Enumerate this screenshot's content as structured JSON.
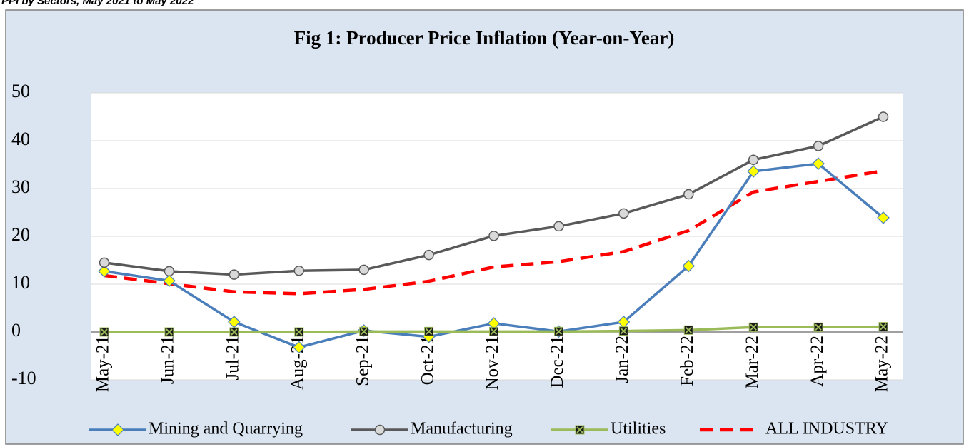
{
  "chart_data": {
    "type": "line",
    "caption": "PPI by Sectors, May 2021 to May 2022",
    "title": "Fig 1: Producer Price Inflation (Year-on-Year)",
    "categories": [
      "May-21",
      "Jun-21",
      "Jul-21",
      "Aug-21",
      "Sep-21",
      "Oct-21",
      "Nov-21",
      "Dec-21",
      "Jan-22",
      "Feb-22",
      "Mar-22",
      "Apr-22",
      "May-22"
    ],
    "series": [
      {
        "name": "Mining and Quarrying",
        "color": "#4a7ebb",
        "marker": "diamond",
        "marker_color": "#ffff00",
        "values": [
          12.7,
          10.7,
          2.1,
          -3.2,
          0.3,
          -1.0,
          1.8,
          0.1,
          2.1,
          13.8,
          33.6,
          35.2,
          23.9
        ]
      },
      {
        "name": "Manufacturing",
        "color": "#595959",
        "marker": "circle",
        "marker_color": "#d9d9d9",
        "values": [
          14.5,
          12.7,
          12.0,
          12.8,
          13.0,
          16.1,
          20.1,
          22.1,
          24.8,
          28.8,
          36.0,
          38.9,
          45.0
        ]
      },
      {
        "name": "Utilities",
        "color": "#9bbb59",
        "marker": "x-square",
        "marker_color": "#1a1a1a",
        "values": [
          0,
          0,
          0,
          0,
          0.1,
          0.1,
          0.1,
          0.1,
          0.2,
          0.4,
          1.0,
          1.0,
          1.1
        ]
      },
      {
        "name": "ALL INDUSTRY",
        "color": "#ff0000",
        "dashed": true,
        "values": [
          11.8,
          10.1,
          8.4,
          8.0,
          8.9,
          10.6,
          13.6,
          14.7,
          16.8,
          21.2,
          29.3,
          31.5,
          33.7
        ]
      }
    ],
    "ylim": [
      -10,
      50
    ],
    "yticks": [
      -10,
      0,
      10,
      20,
      30,
      40,
      50
    ],
    "grid": true,
    "legend": "bottom"
  }
}
